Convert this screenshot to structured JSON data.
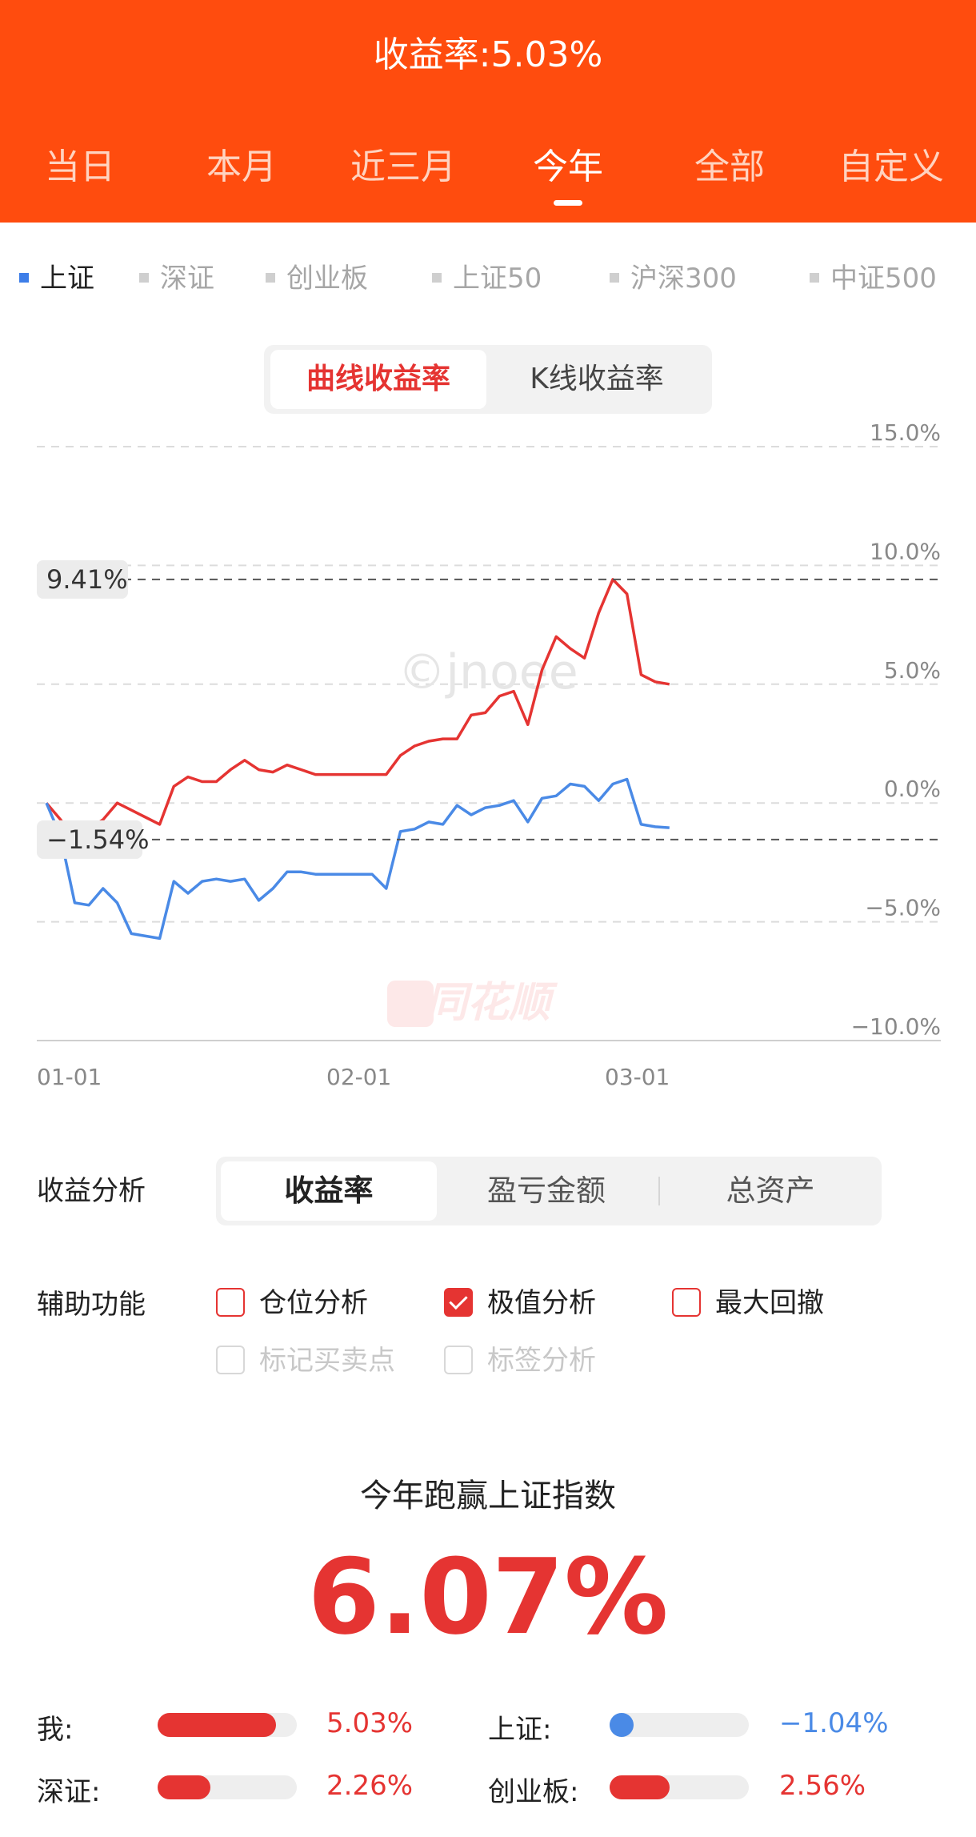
{
  "header": {
    "title": "收益率:5.03%",
    "tabs": [
      "当日",
      "本月",
      "近三月",
      "今年",
      "全部",
      "自定义"
    ],
    "active_tab": "今年"
  },
  "indices": {
    "items": [
      "上证",
      "深证",
      "创业板",
      "上证50",
      "沪深300",
      "中证500"
    ],
    "active": "上证"
  },
  "mode_toggle": {
    "options": [
      "曲线收益率",
      "K线收益率"
    ],
    "active": "曲线收益率"
  },
  "chart_data": {
    "type": "line",
    "y_ticks": [
      "15.0%",
      "10.0%",
      "5.0%",
      "0.0%",
      "−5.0%",
      "−10.0%"
    ],
    "ylim": [
      -10,
      15
    ],
    "x_ticks": [
      "01-01",
      "02-01",
      "03-01"
    ],
    "grid": true,
    "watermark": "©jnoee",
    "logo_text": "同花顺",
    "annotations": [
      {
        "label": "9.41%",
        "y": 9.41
      },
      {
        "label": "−1.54%",
        "y": -1.54
      }
    ],
    "series": [
      {
        "color": "#e53432",
        "points": [
          [
            0,
            0
          ],
          [
            1,
            -0.7
          ],
          [
            2,
            -1.5
          ],
          [
            3,
            -1.1
          ],
          [
            4,
            -0.7
          ],
          [
            5,
            0
          ],
          [
            6,
            -0.3
          ],
          [
            7,
            -0.6
          ],
          [
            8,
            -0.9
          ],
          [
            9,
            0.7
          ],
          [
            10,
            1.1
          ],
          [
            11,
            0.9
          ],
          [
            12,
            0.9
          ],
          [
            13,
            1.4
          ],
          [
            14,
            1.8
          ],
          [
            15,
            1.4
          ],
          [
            16,
            1.3
          ],
          [
            17,
            1.6
          ],
          [
            18,
            1.4
          ],
          [
            19,
            1.2
          ],
          [
            20,
            1.2
          ],
          [
            21,
            1.2
          ],
          [
            22,
            1.2
          ],
          [
            23,
            1.2
          ],
          [
            24,
            1.2
          ],
          [
            25,
            2.0
          ],
          [
            26,
            2.4
          ],
          [
            27,
            2.6
          ],
          [
            28,
            2.7
          ],
          [
            29,
            2.7
          ],
          [
            30,
            3.7
          ],
          [
            31,
            3.8
          ],
          [
            32,
            4.5
          ],
          [
            33,
            4.7
          ],
          [
            34,
            3.3
          ],
          [
            35,
            5.6
          ],
          [
            36,
            7.0
          ],
          [
            37,
            6.5
          ],
          [
            38,
            6.1
          ],
          [
            39,
            8.0
          ],
          [
            40,
            9.41
          ],
          [
            41,
            8.8
          ],
          [
            42,
            5.4
          ],
          [
            43,
            5.1
          ],
          [
            44,
            5.0
          ]
        ]
      },
      {
        "color": "#4a8ae6",
        "points": [
          [
            0,
            0
          ],
          [
            1,
            -1.4
          ],
          [
            2,
            -4.2
          ],
          [
            3,
            -4.3
          ],
          [
            4,
            -3.6
          ],
          [
            5,
            -4.2
          ],
          [
            6,
            -5.5
          ],
          [
            7,
            -5.6
          ],
          [
            8,
            -5.7
          ],
          [
            9,
            -3.3
          ],
          [
            10,
            -3.8
          ],
          [
            11,
            -3.3
          ],
          [
            12,
            -3.2
          ],
          [
            13,
            -3.3
          ],
          [
            14,
            -3.2
          ],
          [
            15,
            -4.1
          ],
          [
            16,
            -3.6
          ],
          [
            17,
            -2.9
          ],
          [
            18,
            -2.9
          ],
          [
            19,
            -3.0
          ],
          [
            20,
            -3.0
          ],
          [
            21,
            -3.0
          ],
          [
            22,
            -3.0
          ],
          [
            23,
            -3.0
          ],
          [
            24,
            -3.6
          ],
          [
            25,
            -1.2
          ],
          [
            26,
            -1.1
          ],
          [
            27,
            -0.8
          ],
          [
            28,
            -0.9
          ],
          [
            29,
            -0.1
          ],
          [
            30,
            -0.5
          ],
          [
            31,
            -0.2
          ],
          [
            32,
            -0.1
          ],
          [
            33,
            0.1
          ],
          [
            34,
            -0.8
          ],
          [
            35,
            0.2
          ],
          [
            36,
            0.3
          ],
          [
            37,
            0.8
          ],
          [
            38,
            0.7
          ],
          [
            39,
            0.1
          ],
          [
            40,
            0.8
          ],
          [
            41,
            1.0
          ],
          [
            42,
            -0.9
          ],
          [
            43,
            -1.0
          ],
          [
            44,
            -1.04
          ]
        ]
      }
    ]
  },
  "analysis": {
    "label": "收益分析",
    "options": [
      "收益率",
      "盈亏金额",
      "总资产"
    ],
    "active": "收益率"
  },
  "aux": {
    "label": "辅助功能",
    "items": [
      {
        "label": "仓位分析",
        "checked": false,
        "disabled": false
      },
      {
        "label": "极值分析",
        "checked": true,
        "disabled": false
      },
      {
        "label": "最大回撤",
        "checked": false,
        "disabled": false
      },
      {
        "label": "标记买卖点",
        "checked": false,
        "disabled": true
      },
      {
        "label": "标签分析",
        "checked": false,
        "disabled": true
      }
    ]
  },
  "beat": {
    "title": "今年跑赢上证指数",
    "value": "6.07%"
  },
  "stats": [
    {
      "label": "我:",
      "value": "5.03%",
      "level": 0.85,
      "color": "#e53432"
    },
    {
      "label": "上证:",
      "value": "−1.04%",
      "level": 0.1,
      "color": "#4a8ae6",
      "dot": true
    },
    {
      "label": "深证:",
      "value": "2.26%",
      "level": 0.38,
      "color": "#e53432"
    },
    {
      "label": "创业板:",
      "value": "2.56%",
      "level": 0.43,
      "color": "#e53432"
    }
  ]
}
